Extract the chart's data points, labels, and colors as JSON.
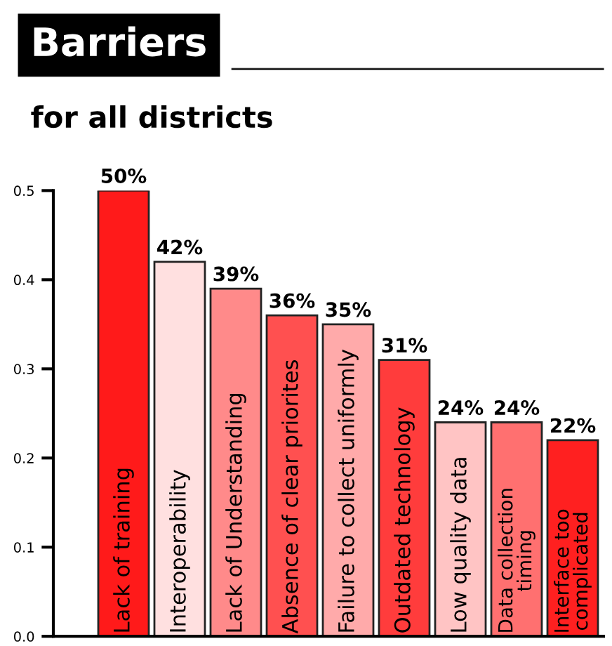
{
  "chart_data": {
    "type": "bar",
    "title": "Barriers",
    "subtitle": "for all districts",
    "categories": [
      "Lack of training",
      "Interoperability",
      "Lack of Understanding",
      "Absence of clear priorites",
      "Failure to collect uniformly",
      "Outdated technology",
      "Low quality data",
      "Data collection timing",
      "Interface too complicated"
    ],
    "values": [
      0.5,
      0.42,
      0.39,
      0.36,
      0.35,
      0.31,
      0.24,
      0.24,
      0.22
    ],
    "value_labels": [
      "50%",
      "42%",
      "39%",
      "36%",
      "35%",
      "31%",
      "24%",
      "24%",
      "22%"
    ],
    "colors": [
      "#ff1a1a",
      "#ffe0e0",
      "#ff8a8a",
      "#ff5050",
      "#ffaaaa",
      "#ff3c3c",
      "#ffc4c4",
      "#ff7070",
      "#ff2020"
    ],
    "ylim": [
      0,
      0.5
    ],
    "yticks": [
      {
        "value": 0.0,
        "label": "0.0"
      },
      0.1,
      0.2,
      0.3,
      0.4,
      0.5
    ],
    "grid": false,
    "legend": false
  }
}
